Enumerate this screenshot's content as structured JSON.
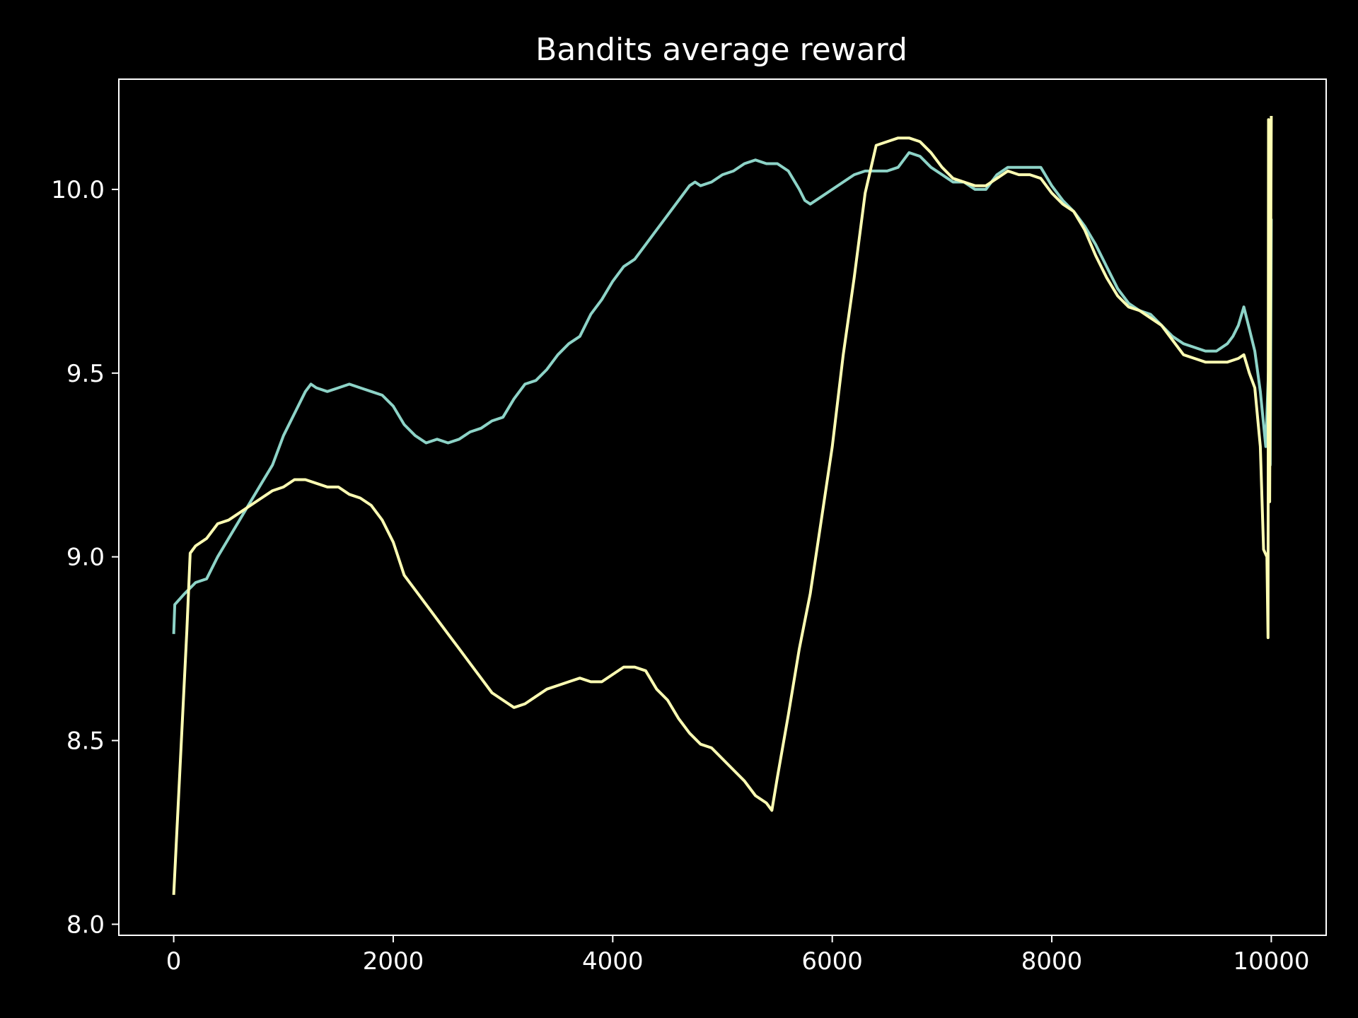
{
  "chart_data": {
    "type": "line",
    "title": "Bandits average reward",
    "xlabel": "",
    "ylabel": "",
    "xlim": [
      -500,
      10500
    ],
    "ylim": [
      7.97,
      10.3
    ],
    "grid": false,
    "legend": "none",
    "background": "#000000",
    "axes_color": "#ffffff",
    "xticks": [
      0,
      2000,
      4000,
      6000,
      8000,
      10000
    ],
    "xtick_labels": [
      "0",
      "2000",
      "4000",
      "6000",
      "8000",
      "10000"
    ],
    "yticks": [
      8.0,
      8.5,
      9.0,
      9.5,
      10.0
    ],
    "ytick_labels": [
      "8.0",
      "8.5",
      "9.0",
      "9.5",
      "10.0"
    ],
    "series": [
      {
        "color": "#8dd3c7",
        "points": [
          [
            0,
            8.79
          ],
          [
            10,
            8.87
          ],
          [
            100,
            8.9
          ],
          [
            200,
            8.93
          ],
          [
            300,
            8.94
          ],
          [
            400,
            9.0
          ],
          [
            500,
            9.05
          ],
          [
            600,
            9.1
          ],
          [
            700,
            9.15
          ],
          [
            800,
            9.2
          ],
          [
            900,
            9.25
          ],
          [
            1000,
            9.33
          ],
          [
            1100,
            9.39
          ],
          [
            1200,
            9.45
          ],
          [
            1250,
            9.47
          ],
          [
            1300,
            9.46
          ],
          [
            1400,
            9.45
          ],
          [
            1500,
            9.46
          ],
          [
            1600,
            9.47
          ],
          [
            1700,
            9.46
          ],
          [
            1800,
            9.45
          ],
          [
            1900,
            9.44
          ],
          [
            2000,
            9.41
          ],
          [
            2100,
            9.36
          ],
          [
            2200,
            9.33
          ],
          [
            2300,
            9.31
          ],
          [
            2400,
            9.32
          ],
          [
            2500,
            9.31
          ],
          [
            2600,
            9.32
          ],
          [
            2700,
            9.34
          ],
          [
            2800,
            9.35
          ],
          [
            2900,
            9.37
          ],
          [
            3000,
            9.38
          ],
          [
            3100,
            9.43
          ],
          [
            3200,
            9.47
          ],
          [
            3300,
            9.48
          ],
          [
            3400,
            9.51
          ],
          [
            3500,
            9.55
          ],
          [
            3600,
            9.58
          ],
          [
            3700,
            9.6
          ],
          [
            3800,
            9.66
          ],
          [
            3900,
            9.7
          ],
          [
            4000,
            9.75
          ],
          [
            4100,
            9.79
          ],
          [
            4200,
            9.81
          ],
          [
            4300,
            9.85
          ],
          [
            4400,
            9.89
          ],
          [
            4500,
            9.93
          ],
          [
            4600,
            9.97
          ],
          [
            4700,
            10.01
          ],
          [
            4750,
            10.02
          ],
          [
            4800,
            10.01
          ],
          [
            4900,
            10.02
          ],
          [
            5000,
            10.04
          ],
          [
            5100,
            10.05
          ],
          [
            5200,
            10.07
          ],
          [
            5300,
            10.08
          ],
          [
            5400,
            10.07
          ],
          [
            5500,
            10.07
          ],
          [
            5600,
            10.05
          ],
          [
            5700,
            10.0
          ],
          [
            5750,
            9.97
          ],
          [
            5800,
            9.96
          ],
          [
            5900,
            9.98
          ],
          [
            6000,
            10.0
          ],
          [
            6100,
            10.02
          ],
          [
            6200,
            10.04
          ],
          [
            6300,
            10.05
          ],
          [
            6400,
            10.05
          ],
          [
            6500,
            10.05
          ],
          [
            6600,
            10.06
          ],
          [
            6700,
            10.1
          ],
          [
            6800,
            10.09
          ],
          [
            6900,
            10.06
          ],
          [
            7000,
            10.04
          ],
          [
            7100,
            10.02
          ],
          [
            7200,
            10.02
          ],
          [
            7300,
            10.0
          ],
          [
            7400,
            10.0
          ],
          [
            7500,
            10.04
          ],
          [
            7600,
            10.06
          ],
          [
            7700,
            10.06
          ],
          [
            7800,
            10.06
          ],
          [
            7900,
            10.06
          ],
          [
            8000,
            10.01
          ],
          [
            8100,
            9.97
          ],
          [
            8200,
            9.94
          ],
          [
            8300,
            9.9
          ],
          [
            8400,
            9.85
          ],
          [
            8500,
            9.79
          ],
          [
            8600,
            9.73
          ],
          [
            8700,
            9.69
          ],
          [
            8800,
            9.67
          ],
          [
            8900,
            9.66
          ],
          [
            9000,
            9.63
          ],
          [
            9100,
            9.6
          ],
          [
            9200,
            9.58
          ],
          [
            9300,
            9.57
          ],
          [
            9400,
            9.56
          ],
          [
            9500,
            9.56
          ],
          [
            9600,
            9.58
          ],
          [
            9650,
            9.6
          ],
          [
            9700,
            9.63
          ],
          [
            9750,
            9.68
          ],
          [
            9800,
            9.62
          ],
          [
            9850,
            9.56
          ],
          [
            9900,
            9.45
          ],
          [
            9950,
            9.3
          ],
          [
            9980,
            9.55
          ],
          [
            9990,
            9.25
          ],
          [
            10000,
            9.92
          ]
        ]
      },
      {
        "color": "#ffffb3",
        "points": [
          [
            0,
            8.08
          ],
          [
            120,
            8.8
          ],
          [
            150,
            9.01
          ],
          [
            200,
            9.03
          ],
          [
            300,
            9.05
          ],
          [
            400,
            9.09
          ],
          [
            500,
            9.1
          ],
          [
            600,
            9.12
          ],
          [
            700,
            9.14
          ],
          [
            800,
            9.16
          ],
          [
            900,
            9.18
          ],
          [
            1000,
            9.19
          ],
          [
            1100,
            9.21
          ],
          [
            1200,
            9.21
          ],
          [
            1300,
            9.2
          ],
          [
            1400,
            9.19
          ],
          [
            1500,
            9.19
          ],
          [
            1600,
            9.17
          ],
          [
            1700,
            9.16
          ],
          [
            1800,
            9.14
          ],
          [
            1900,
            9.1
          ],
          [
            2000,
            9.04
          ],
          [
            2100,
            8.95
          ],
          [
            2200,
            8.91
          ],
          [
            2300,
            8.87
          ],
          [
            2400,
            8.83
          ],
          [
            2500,
            8.79
          ],
          [
            2600,
            8.75
          ],
          [
            2700,
            8.71
          ],
          [
            2800,
            8.67
          ],
          [
            2900,
            8.63
          ],
          [
            3000,
            8.61
          ],
          [
            3100,
            8.59
          ],
          [
            3200,
            8.6
          ],
          [
            3300,
            8.62
          ],
          [
            3400,
            8.64
          ],
          [
            3500,
            8.65
          ],
          [
            3600,
            8.66
          ],
          [
            3700,
            8.67
          ],
          [
            3800,
            8.66
          ],
          [
            3900,
            8.66
          ],
          [
            4000,
            8.68
          ],
          [
            4100,
            8.7
          ],
          [
            4200,
            8.7
          ],
          [
            4300,
            8.69
          ],
          [
            4400,
            8.64
          ],
          [
            4500,
            8.61
          ],
          [
            4600,
            8.56
          ],
          [
            4700,
            8.52
          ],
          [
            4800,
            8.49
          ],
          [
            4900,
            8.48
          ],
          [
            5000,
            8.45
          ],
          [
            5100,
            8.42
          ],
          [
            5200,
            8.39
          ],
          [
            5300,
            8.35
          ],
          [
            5400,
            8.33
          ],
          [
            5450,
            8.31
          ],
          [
            5500,
            8.4
          ],
          [
            5600,
            8.57
          ],
          [
            5700,
            8.75
          ],
          [
            5800,
            8.9
          ],
          [
            5900,
            9.1
          ],
          [
            6000,
            9.3
          ],
          [
            6100,
            9.55
          ],
          [
            6200,
            9.76
          ],
          [
            6300,
            9.99
          ],
          [
            6400,
            10.12
          ],
          [
            6500,
            10.13
          ],
          [
            6600,
            10.14
          ],
          [
            6700,
            10.14
          ],
          [
            6800,
            10.13
          ],
          [
            6900,
            10.1
          ],
          [
            7000,
            10.06
          ],
          [
            7100,
            10.03
          ],
          [
            7200,
            10.02
          ],
          [
            7300,
            10.01
          ],
          [
            7400,
            10.01
          ],
          [
            7500,
            10.03
          ],
          [
            7600,
            10.05
          ],
          [
            7700,
            10.04
          ],
          [
            7800,
            10.04
          ],
          [
            7900,
            10.03
          ],
          [
            8000,
            9.99
          ],
          [
            8100,
            9.96
          ],
          [
            8200,
            9.94
          ],
          [
            8300,
            9.89
          ],
          [
            8400,
            9.82
          ],
          [
            8500,
            9.76
          ],
          [
            8600,
            9.71
          ],
          [
            8700,
            9.68
          ],
          [
            8800,
            9.67
          ],
          [
            8900,
            9.65
          ],
          [
            9000,
            9.63
          ],
          [
            9100,
            9.59
          ],
          [
            9200,
            9.55
          ],
          [
            9300,
            9.54
          ],
          [
            9400,
            9.53
          ],
          [
            9500,
            9.53
          ],
          [
            9600,
            9.53
          ],
          [
            9700,
            9.54
          ],
          [
            9750,
            9.55
          ],
          [
            9800,
            9.5
          ],
          [
            9850,
            9.46
          ],
          [
            9900,
            9.3
          ],
          [
            9930,
            9.02
          ],
          [
            9960,
            9.0
          ],
          [
            9970,
            8.78
          ],
          [
            9975,
            10.19
          ],
          [
            9985,
            9.15
          ],
          [
            10000,
            10.2
          ]
        ]
      }
    ]
  }
}
